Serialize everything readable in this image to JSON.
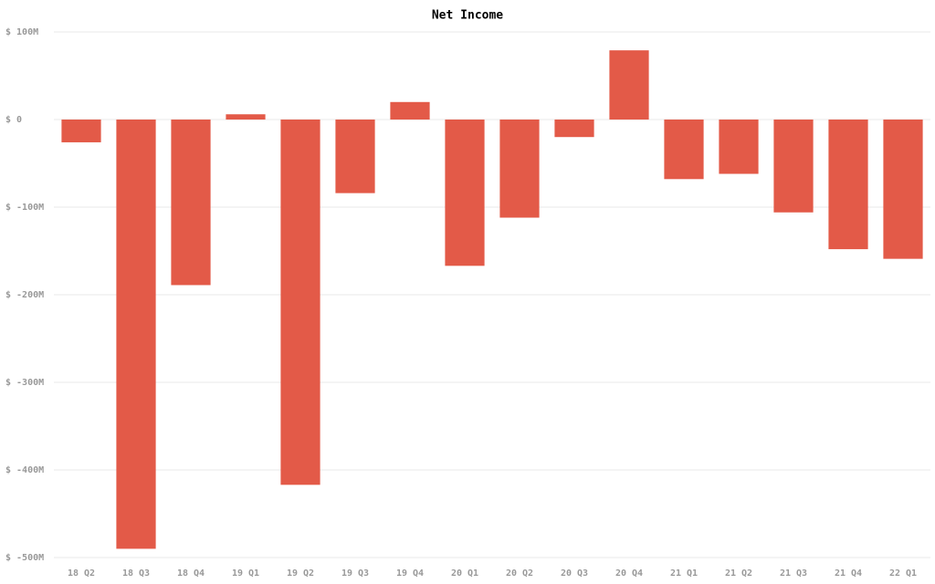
{
  "chart_data": {
    "type": "bar",
    "title": "Net Income",
    "categories": [
      "18 Q2",
      "18 Q3",
      "18 Q4",
      "19 Q1",
      "19 Q2",
      "19 Q3",
      "19 Q4",
      "20 Q1",
      "20 Q2",
      "20 Q3",
      "20 Q4",
      "21 Q1",
      "21 Q2",
      "21 Q3",
      "21 Q4",
      "22 Q1"
    ],
    "values": [
      -26,
      -490,
      -189,
      6,
      -417,
      -84,
      20,
      -167,
      -112,
      -20,
      79,
      -68,
      -62,
      -106,
      -148,
      -159
    ],
    "color": "#e35a48",
    "ylim": [
      -500,
      100
    ],
    "yticks": [
      {
        "value": -500,
        "label": "$ -500M"
      },
      {
        "value": -400,
        "label": "$ -400M"
      },
      {
        "value": -300,
        "label": "$ -300M"
      },
      {
        "value": -200,
        "label": "$ -200M"
      },
      {
        "value": -100,
        "label": "$ -100M"
      },
      {
        "value": 0,
        "label": "$ 0"
      },
      {
        "value": 100,
        "label": "$ 100M"
      }
    ],
    "grid": true
  }
}
